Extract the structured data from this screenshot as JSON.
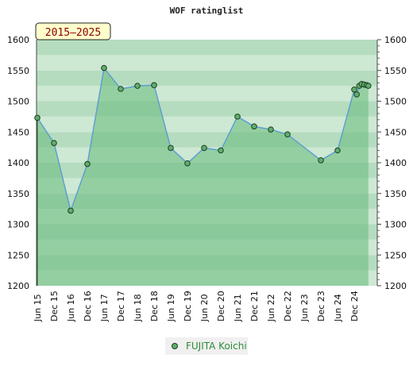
{
  "chart_data": {
    "type": "line",
    "title": "WOF ratinglist",
    "period_badge": "2015–2025",
    "ylim": [
      1200,
      1600
    ],
    "y_ticks": [
      1200,
      1250,
      1300,
      1350,
      1400,
      1450,
      1500,
      1550,
      1600
    ],
    "x_tick_labels": [
      "Jun 15",
      "Dec 15",
      "Jun 16",
      "Dec 16",
      "Jun 17",
      "Dec 17",
      "Jun 18",
      "Dec 18",
      "Jun 19",
      "Dec 19",
      "Jun 20",
      "Dec 20",
      "Jun 21",
      "Dec 21",
      "Jun 22",
      "Dec 22",
      "Jun 23",
      "Dec 23",
      "Jun 24",
      "Dec 24"
    ],
    "grid": true,
    "legend_position": "bottom-center",
    "series": [
      {
        "name": "FUJITA Koichi",
        "points": [
          {
            "x": 0.0,
            "y": 1473
          },
          {
            "x": 1.0,
            "y": 1432
          },
          {
            "x": 2.0,
            "y": 1322
          },
          {
            "x": 3.0,
            "y": 1398
          },
          {
            "x": 4.0,
            "y": 1554
          },
          {
            "x": 5.0,
            "y": 1520
          },
          {
            "x": 6.0,
            "y": 1525
          },
          {
            "x": 7.0,
            "y": 1526
          },
          {
            "x": 8.0,
            "y": 1424
          },
          {
            "x": 9.0,
            "y": 1399
          },
          {
            "x": 10.0,
            "y": 1424
          },
          {
            "x": 11.0,
            "y": 1420
          },
          {
            "x": 12.0,
            "y": 1475
          },
          {
            "x": 13.0,
            "y": 1459
          },
          {
            "x": 14.0,
            "y": 1454
          },
          {
            "x": 15.0,
            "y": 1446
          },
          {
            "x": 17.0,
            "y": 1404
          },
          {
            "x": 18.0,
            "y": 1420
          },
          {
            "x": 19.0,
            "y": 1519
          },
          {
            "x": 19.15,
            "y": 1511
          },
          {
            "x": 19.3,
            "y": 1525
          },
          {
            "x": 19.45,
            "y": 1528
          },
          {
            "x": 19.6,
            "y": 1527
          },
          {
            "x": 19.75,
            "y": 1526
          },
          {
            "x": 19.85,
            "y": 1525
          }
        ]
      }
    ]
  },
  "colors": {
    "line": "#5b9bd5",
    "marker_fill": "#5fae6e",
    "marker_stroke": "#1e3d1e",
    "area_fill": "#66b97a",
    "badge_bg": "#ffffcc",
    "legend_text": "#2e8b3a"
  }
}
